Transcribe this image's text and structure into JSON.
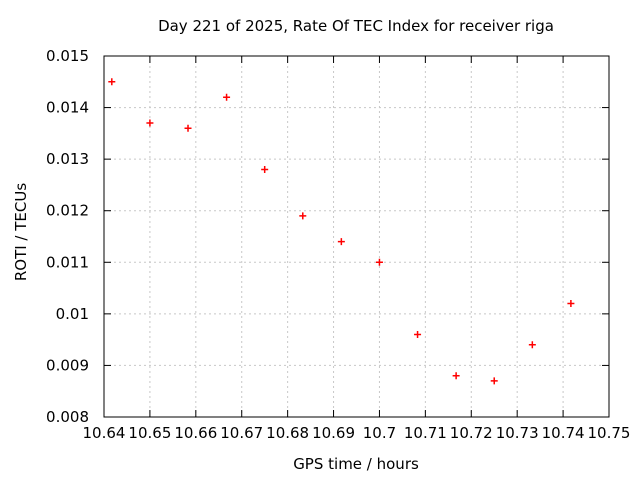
{
  "chart_data": {
    "type": "scatter",
    "title": "Day 221 of 2025, Rate Of TEC Index for receiver riga",
    "xlabel": "GPS time / hours",
    "ylabel": "ROTI / TECUs",
    "xlim": [
      10.64,
      10.75
    ],
    "ylim": [
      0.008,
      0.015
    ],
    "x_ticks": [
      10.64,
      10.65,
      10.66,
      10.67,
      10.68,
      10.69,
      10.7,
      10.71,
      10.72,
      10.73,
      10.74,
      10.75
    ],
    "x_tick_labels": [
      "10.64",
      "10.65",
      "10.66",
      "10.67",
      "10.68",
      "10.69",
      "10.7",
      "10.71",
      "10.72",
      "10.73",
      "10.74",
      "10.75"
    ],
    "y_ticks": [
      0.008,
      0.009,
      0.01,
      0.011,
      0.012,
      0.013,
      0.014,
      0.015
    ],
    "y_tick_labels": [
      "0.008",
      "0.009",
      "0.01",
      "0.011",
      "0.012",
      "0.013",
      "0.014",
      "0.015"
    ],
    "grid": true,
    "legend": "none",
    "marker": {
      "shape": "plus",
      "size": 7
    },
    "series": [
      {
        "name": "ROTI",
        "x": [
          10.6417,
          10.65,
          10.6583,
          10.6667,
          10.675,
          10.6833,
          10.6917,
          10.7,
          10.7083,
          10.7167,
          10.725,
          10.7333,
          10.7417
        ],
        "y": [
          0.0145,
          0.0137,
          0.0136,
          0.0142,
          0.0128,
          0.0119,
          0.0114,
          0.011,
          0.0096,
          0.0088,
          0.0087,
          0.0094,
          0.0102
        ]
      }
    ],
    "colors": {
      "marker": "#ff0000",
      "grid": "#c8c8c8",
      "axis": "#000000",
      "background": "#ffffff"
    }
  }
}
